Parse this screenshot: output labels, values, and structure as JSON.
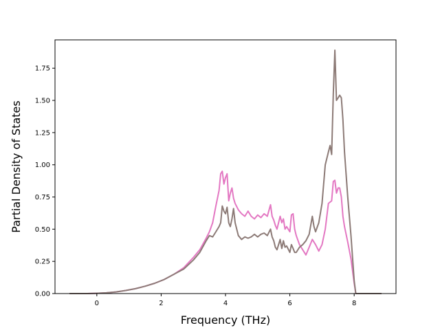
{
  "chart_data": {
    "type": "line",
    "title": "",
    "xlabel": "Frequency (THz)",
    "ylabel": "Partial Density of States",
    "xlim": [
      -1.3,
      9.3
    ],
    "ylim": [
      0.0,
      1.97
    ],
    "xticks": [
      0,
      2,
      4,
      6,
      8
    ],
    "yticks": [
      0.0,
      0.25,
      0.5,
      0.75,
      1.0,
      1.25,
      1.5,
      1.75
    ],
    "xtick_labels": [
      "0",
      "2",
      "4",
      "6",
      "8"
    ],
    "ytick_labels": [
      "0.00",
      "0.25",
      "0.50",
      "0.75",
      "1.00",
      "1.25",
      "1.50",
      "1.75"
    ],
    "grid": false,
    "legend": "none",
    "series": [
      {
        "color": "#e377c2",
        "x": [
          -0.85,
          -0.3,
          0.0,
          0.3,
          0.6,
          0.9,
          1.2,
          1.5,
          1.8,
          2.1,
          2.4,
          2.7,
          3.0,
          3.2,
          3.4,
          3.5,
          3.6,
          3.7,
          3.8,
          3.85,
          3.9,
          3.95,
          4.0,
          4.05,
          4.1,
          4.15,
          4.2,
          4.25,
          4.3,
          4.4,
          4.5,
          4.6,
          4.7,
          4.8,
          4.9,
          5.0,
          5.1,
          5.2,
          5.3,
          5.4,
          5.45,
          5.5,
          5.55,
          5.6,
          5.7,
          5.75,
          5.8,
          5.85,
          5.9,
          6.0,
          6.05,
          6.1,
          6.15,
          6.2,
          6.3,
          6.4,
          6.5,
          6.6,
          6.7,
          6.8,
          6.9,
          7.0,
          7.1,
          7.2,
          7.3,
          7.35,
          7.4,
          7.45,
          7.5,
          7.55,
          7.6,
          7.65,
          7.7,
          7.8,
          7.9,
          8.0,
          8.05,
          8.1,
          8.5,
          8.85
        ],
        "y": [
          0.0,
          0.0,
          0.002,
          0.006,
          0.013,
          0.024,
          0.038,
          0.057,
          0.08,
          0.11,
          0.15,
          0.2,
          0.28,
          0.34,
          0.43,
          0.48,
          0.55,
          0.68,
          0.8,
          0.93,
          0.95,
          0.85,
          0.9,
          0.93,
          0.72,
          0.78,
          0.82,
          0.74,
          0.7,
          0.65,
          0.62,
          0.6,
          0.64,
          0.6,
          0.58,
          0.61,
          0.59,
          0.62,
          0.6,
          0.69,
          0.6,
          0.57,
          0.53,
          0.5,
          0.6,
          0.55,
          0.58,
          0.5,
          0.52,
          0.48,
          0.61,
          0.62,
          0.5,
          0.45,
          0.38,
          0.34,
          0.3,
          0.36,
          0.42,
          0.38,
          0.33,
          0.38,
          0.5,
          0.7,
          0.72,
          0.87,
          0.88,
          0.78,
          0.82,
          0.82,
          0.75,
          0.6,
          0.52,
          0.4,
          0.27,
          0.08,
          0.0,
          0.0,
          0.0,
          0.0
        ]
      },
      {
        "color": "#8c7a76",
        "x": [
          -0.85,
          -0.3,
          0.0,
          0.3,
          0.6,
          0.9,
          1.2,
          1.5,
          1.8,
          2.1,
          2.4,
          2.7,
          3.0,
          3.2,
          3.4,
          3.5,
          3.6,
          3.7,
          3.8,
          3.85,
          3.9,
          3.95,
          4.0,
          4.05,
          4.1,
          4.15,
          4.2,
          4.25,
          4.3,
          4.4,
          4.5,
          4.6,
          4.7,
          4.8,
          4.9,
          5.0,
          5.1,
          5.2,
          5.3,
          5.4,
          5.45,
          5.5,
          5.55,
          5.6,
          5.7,
          5.75,
          5.8,
          5.85,
          5.9,
          6.0,
          6.05,
          6.1,
          6.15,
          6.2,
          6.3,
          6.4,
          6.5,
          6.6,
          6.7,
          6.75,
          6.8,
          6.9,
          7.0,
          7.1,
          7.2,
          7.25,
          7.3,
          7.35,
          7.4,
          7.45,
          7.5,
          7.55,
          7.6,
          7.65,
          7.7,
          7.8,
          7.9,
          8.0,
          8.05,
          8.1,
          8.5,
          8.85
        ],
        "y": [
          0.0,
          0.0,
          0.002,
          0.006,
          0.013,
          0.024,
          0.038,
          0.057,
          0.08,
          0.11,
          0.15,
          0.19,
          0.26,
          0.32,
          0.41,
          0.45,
          0.44,
          0.48,
          0.52,
          0.55,
          0.68,
          0.64,
          0.62,
          0.67,
          0.55,
          0.52,
          0.58,
          0.66,
          0.55,
          0.45,
          0.42,
          0.44,
          0.43,
          0.44,
          0.46,
          0.44,
          0.46,
          0.47,
          0.45,
          0.5,
          0.44,
          0.41,
          0.36,
          0.34,
          0.42,
          0.35,
          0.41,
          0.36,
          0.37,
          0.32,
          0.38,
          0.35,
          0.32,
          0.32,
          0.36,
          0.38,
          0.41,
          0.46,
          0.6,
          0.52,
          0.48,
          0.55,
          0.7,
          1.0,
          1.1,
          1.15,
          1.08,
          1.55,
          1.89,
          1.5,
          1.52,
          1.54,
          1.52,
          1.35,
          1.1,
          0.75,
          0.45,
          0.1,
          0.0,
          0.0,
          0.0,
          0.0
        ]
      }
    ]
  }
}
